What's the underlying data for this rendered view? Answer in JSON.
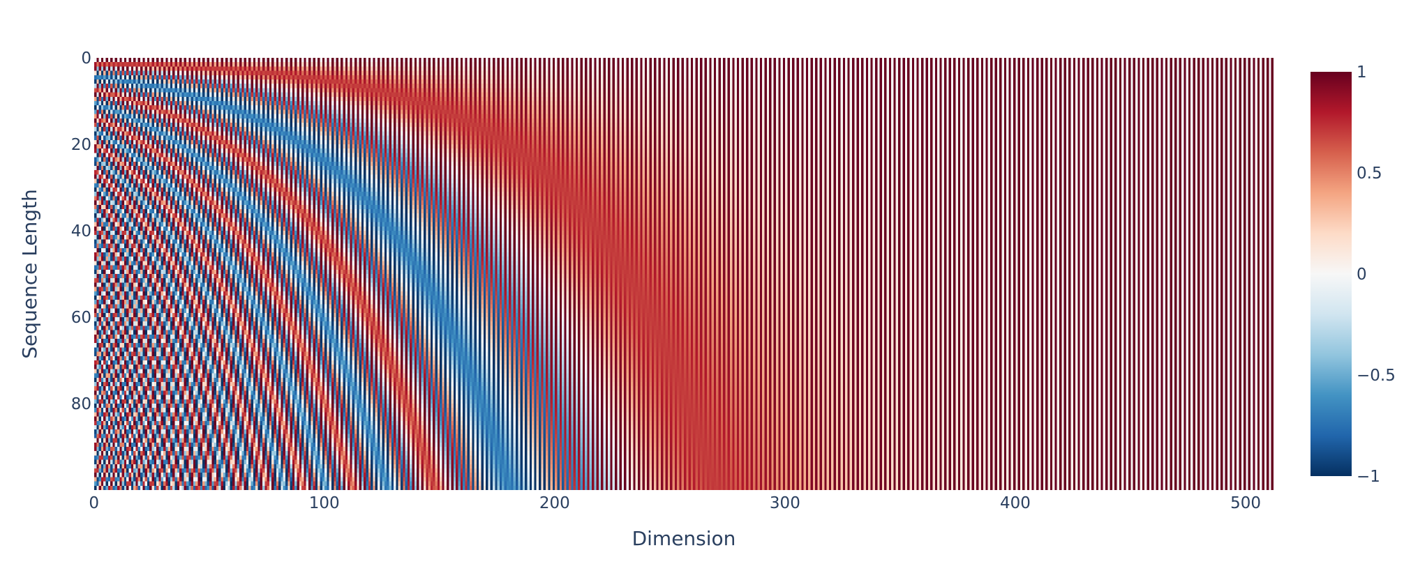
{
  "chart_data": {
    "type": "heatmap",
    "title": "",
    "xlabel": "Dimension",
    "ylabel": "Sequence Length",
    "x": {
      "min": 0,
      "max": 511,
      "count": 512
    },
    "y": {
      "min": 0,
      "max": 99,
      "count": 100,
      "reversed": true
    },
    "x_ticks": [
      0,
      100,
      200,
      300,
      400,
      500
    ],
    "y_ticks": [
      0,
      20,
      40,
      60,
      80
    ],
    "z_formula": "sinusoidal positional encoding, d_model = 512: even dimension i -> sin(pos / 10000^(i/512)), odd dimension i -> cos(pos / 10000^((i-1)/512))",
    "d_model": 512,
    "base": 10000,
    "colorscale": "RdBu (reversed): -1 dark blue, 0 white, 1 dark red",
    "colorscale_stops": [
      "#053061",
      "#2166ac",
      "#4393c3",
      "#92c5de",
      "#d1e5f0",
      "#f7f7f7",
      "#fddbc7",
      "#f4a582",
      "#d6604d",
      "#b2182b",
      "#67001f"
    ],
    "zlim": [
      -1,
      1
    ],
    "colorbar_ticks": [
      1,
      0.5,
      0,
      -0.5,
      -1
    ],
    "colorbar_tick_labels": [
      "1",
      "0.5",
      "0",
      "−0.5",
      "−1"
    ],
    "grid": false,
    "legend": "colorbar-right"
  },
  "colors": {
    "tick_text": "#2a3f5f",
    "background": "#ffffff"
  }
}
